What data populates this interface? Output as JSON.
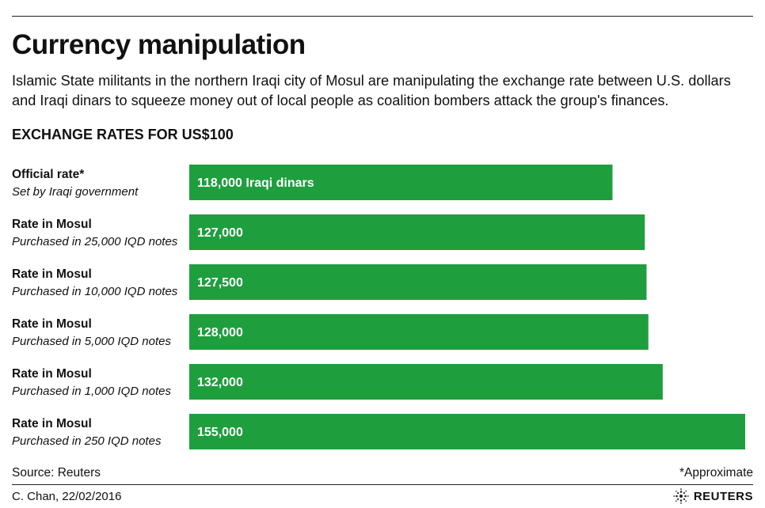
{
  "header": {
    "title": "Currency manipulation",
    "subtitle": "Islamic State militants in the northern Iraqi city of Mosul are manipulating the exchange rate between U.S. dollars and Iraqi dinars to squeeze money out of local people as coalition bombers attack the group's finances.",
    "section_heading": "EXCHANGE RATES FOR US$100"
  },
  "footer": {
    "source": "Source: Reuters",
    "note": "*Approximate",
    "credit": "C. Chan,  22/02/2016",
    "brand": "REUTERS"
  },
  "colors": {
    "bar": "#1f9e3e",
    "bar_text": "#ffffff",
    "text": "#111111"
  },
  "chart_data": {
    "type": "bar",
    "orientation": "horizontal",
    "title": "EXCHANGE RATES FOR US$100",
    "unit": "Iraqi dinars",
    "categories": [
      {
        "label": "Official rate*",
        "sublabel": "Set by Iraqi government"
      },
      {
        "label": "Rate in Mosul",
        "sublabel": "Purchased in 25,000 IQD notes"
      },
      {
        "label": "Rate in Mosul",
        "sublabel": "Purchased in 10,000 IQD notes"
      },
      {
        "label": "Rate in Mosul",
        "sublabel": "Purchased in 5,000 IQD notes"
      },
      {
        "label": "Rate in Mosul",
        "sublabel": "Purchased in 1,000 IQD notes"
      },
      {
        "label": "Rate in Mosul",
        "sublabel": "Purchased in 250 IQD notes"
      }
    ],
    "values": [
      118000,
      127000,
      127500,
      128000,
      132000,
      155000
    ],
    "value_labels": [
      "118,000 Iraqi dinars",
      "127,000",
      "127,500",
      "128,000",
      "132,000",
      "155,000"
    ],
    "axis_min": 0,
    "axis_max": 155000,
    "grid": false,
    "legend": "none"
  }
}
